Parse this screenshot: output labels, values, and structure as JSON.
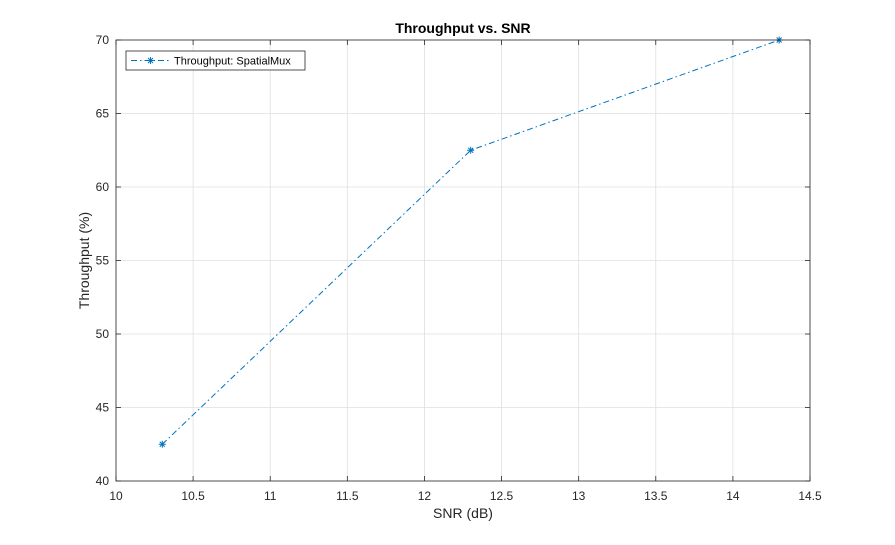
{
  "chart_data": {
    "type": "line",
    "title": "Throughput vs. SNR",
    "xlabel": "SNR (dB)",
    "ylabel": "Throughput (%)",
    "xlim": [
      10,
      14.5
    ],
    "ylim": [
      40,
      70
    ],
    "xticks": [
      10,
      10.5,
      11,
      11.5,
      12,
      12.5,
      13,
      13.5,
      14,
      14.5
    ],
    "xtick_labels": [
      "10",
      "10.5",
      "11",
      "11.5",
      "12",
      "12.5",
      "13",
      "13.5",
      "14",
      "14.5"
    ],
    "yticks": [
      40,
      45,
      50,
      55,
      60,
      65,
      70
    ],
    "ytick_labels": [
      "40",
      "45",
      "50",
      "55",
      "60",
      "65",
      "70"
    ],
    "grid": true,
    "legend_position": "top-left",
    "series": [
      {
        "name": "Throughput: SpatialMux",
        "color": "#0072BD",
        "line_style": "dash-dot",
        "marker": "asterisk",
        "x": [
          10.3,
          12.3,
          14.3
        ],
        "y": [
          42.5,
          62.5,
          70
        ]
      }
    ]
  }
}
